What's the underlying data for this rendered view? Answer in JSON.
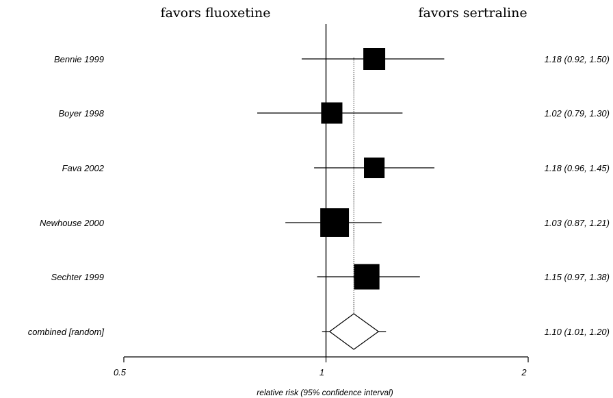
{
  "header": {
    "left": "favors fluoxetine",
    "right": "favors sertraline"
  },
  "chart_data": {
    "type": "forest",
    "xlabel": "relative risk (95% confidence interval)",
    "xscale": "log",
    "xlim": [
      0.5,
      2
    ],
    "xticks": [
      0.5,
      1,
      2
    ],
    "xtick_labels": [
      "0.5",
      "1",
      "2"
    ],
    "reference_line": 1,
    "pooled_line": 1.1,
    "studies": [
      {
        "name": "Bennie 1999",
        "rr": 1.18,
        "lo": 0.92,
        "hi": 1.5,
        "label": "1.18 (0.92, 1.50)",
        "weight": 1.0
      },
      {
        "name": "Boyer 1998",
        "rr": 1.02,
        "lo": 0.79,
        "hi": 1.3,
        "label": "1.02 (0.79, 1.30)",
        "weight": 0.97
      },
      {
        "name": "Fava 2002",
        "rr": 1.18,
        "lo": 0.96,
        "hi": 1.45,
        "label": "1.18 (0.96, 1.45)",
        "weight": 0.94
      },
      {
        "name": "Newhouse  2000",
        "rr": 1.03,
        "lo": 0.87,
        "hi": 1.21,
        "label": "1.03 (0.87, 1.21)",
        "weight": 1.31
      },
      {
        "name": "Sechter 1999",
        "rr": 1.15,
        "lo": 0.97,
        "hi": 1.38,
        "label": "1.15 (0.97, 1.38)",
        "weight": 1.16
      }
    ],
    "combined": {
      "name": "combined [random]",
      "rr": 1.1,
      "lo": 1.01,
      "hi": 1.2,
      "label": "1.10 (1.01, 1.20)"
    }
  }
}
